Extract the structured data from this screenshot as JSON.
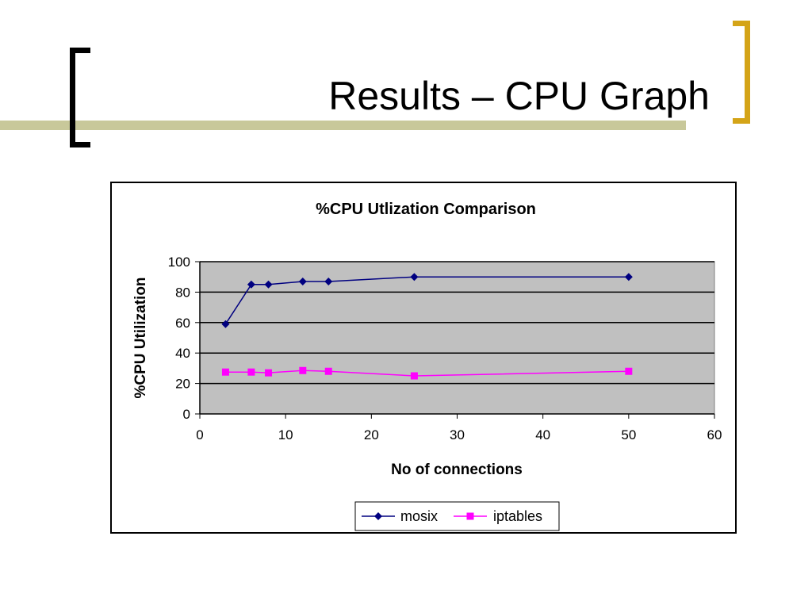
{
  "slide": {
    "title": "Results – CPU Graph",
    "accent_color": "#d4a418",
    "stripe_color": "#c8c89a",
    "bracket_color": "#000000"
  },
  "chart_data": {
    "type": "line",
    "title": "%CPU Utlization Comparison",
    "xlabel": "No of connections",
    "ylabel": "%CPU Utilization",
    "xlim": [
      0,
      60
    ],
    "ylim": [
      0,
      100
    ],
    "x_ticks": [
      0,
      10,
      20,
      30,
      40,
      50,
      60
    ],
    "y_ticks": [
      0,
      20,
      40,
      60,
      80,
      100
    ],
    "grid": "horizontal",
    "plot_background": "#c0c0c0",
    "legend_placement": "bottom",
    "series": [
      {
        "name": "mosix",
        "color": "#000080",
        "marker": "diamond",
        "points": [
          [
            3,
            59
          ],
          [
            6,
            85
          ],
          [
            8,
            85
          ],
          [
            12,
            87
          ],
          [
            15,
            87
          ],
          [
            25,
            90
          ],
          [
            50,
            90
          ]
        ]
      },
      {
        "name": "iptables",
        "color": "#ff00ff",
        "marker": "square",
        "points": [
          [
            3,
            27.5
          ],
          [
            6,
            27.5
          ],
          [
            8,
            27
          ],
          [
            12,
            28.5
          ],
          [
            15,
            28
          ],
          [
            25,
            25
          ],
          [
            50,
            28
          ]
        ]
      }
    ]
  }
}
